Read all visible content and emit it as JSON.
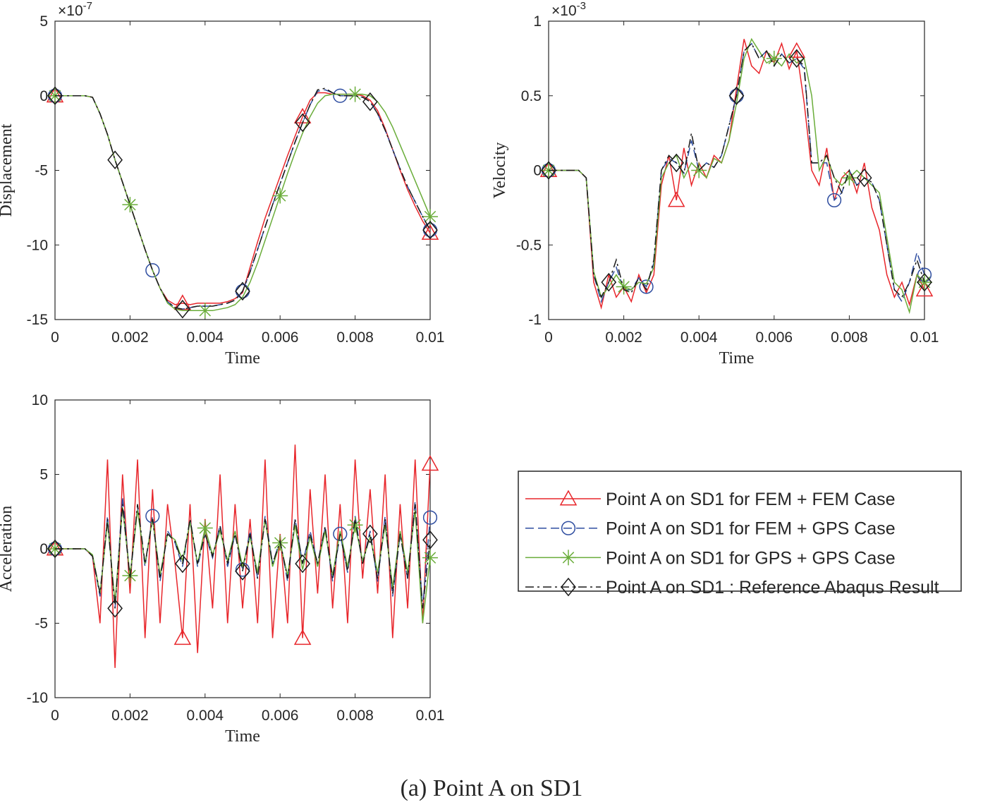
{
  "chart_data": [
    {
      "type": "line",
      "ylabel": "Displacement",
      "xlabel": "Time",
      "exponent": {
        "base": "×10",
        "power": "-7"
      },
      "xlim": [
        0,
        0.01
      ],
      "ylim": [
        -15,
        5
      ],
      "xticks": [
        0,
        0.002,
        0.004,
        0.006,
        0.008,
        0.01
      ],
      "yticks": [
        -15,
        -10,
        -5,
        0,
        5
      ],
      "x": [
        0,
        0.0002,
        0.0004,
        0.0006,
        0.0008,
        0.001,
        0.0012,
        0.0014,
        0.0016,
        0.0018,
        0.002,
        0.0022,
        0.0024,
        0.0026,
        0.0028,
        0.003,
        0.0032,
        0.0034,
        0.0036,
        0.0038,
        0.004,
        0.0042,
        0.0044,
        0.0046,
        0.0048,
        0.005,
        0.0052,
        0.0054,
        0.0056,
        0.0058,
        0.006,
        0.0062,
        0.0064,
        0.0066,
        0.0068,
        0.007,
        0.0072,
        0.0074,
        0.0076,
        0.0078,
        0.008,
        0.0082,
        0.0084,
        0.0086,
        0.0088,
        0.009,
        0.0092,
        0.0094,
        0.0096,
        0.0098,
        0.01
      ],
      "series": [
        {
          "values": [
            0,
            0,
            0,
            0,
            0,
            -0.1,
            -1.2,
            -2.6,
            -4.3,
            -5.8,
            -7.3,
            -8.8,
            -10.3,
            -11.7,
            -12.9,
            -13.7,
            -14.0,
            -13.9,
            -14.0,
            -13.9,
            -13.9,
            -13.9,
            -13.9,
            -13.8,
            -13.6,
            -13.2,
            -11.5,
            -9.8,
            -8.2,
            -6.8,
            -5.4,
            -4.0,
            -2.7,
            -1.4,
            -0.3,
            0.2,
            0.2,
            0.1,
            0.1,
            0.1,
            0.1,
            0.0,
            -0.3,
            -1.0,
            -2.2,
            -3.6,
            -5.0,
            -6.3,
            -7.4,
            -8.4,
            -9.2
          ]
        },
        {
          "values": [
            0,
            0,
            0,
            0,
            0,
            -0.1,
            -1.2,
            -2.6,
            -4.3,
            -5.8,
            -7.3,
            -8.8,
            -10.3,
            -11.7,
            -12.9,
            -13.8,
            -14.2,
            -14.3,
            -14.2,
            -14.1,
            -14.1,
            -14.1,
            -14.0,
            -13.9,
            -13.7,
            -13.1,
            -11.8,
            -10.3,
            -8.8,
            -7.3,
            -5.9,
            -4.5,
            -3.1,
            -1.8,
            -0.6,
            0.3,
            0.4,
            0.2,
            0.0,
            0.0,
            0.0,
            -0.1,
            -0.4,
            -1.2,
            -2.3,
            -3.6,
            -4.9,
            -6.1,
            -7.1,
            -8.1,
            -9.0
          ]
        },
        {
          "values": [
            0,
            0,
            0,
            0,
            0,
            -0.1,
            -1.2,
            -2.6,
            -4.3,
            -5.8,
            -7.3,
            -8.8,
            -10.3,
            -11.7,
            -12.9,
            -13.9,
            -14.3,
            -14.4,
            -14.4,
            -14.4,
            -14.4,
            -14.4,
            -14.3,
            -14.2,
            -14.0,
            -13.5,
            -12.5,
            -11.2,
            -9.7,
            -8.2,
            -6.7,
            -5.2,
            -3.8,
            -2.5,
            -1.4,
            -0.5,
            0.0,
            0.1,
            0.1,
            0.1,
            0.1,
            0.1,
            0.0,
            -0.4,
            -1.1,
            -2.1,
            -3.3,
            -4.5,
            -5.7,
            -6.9,
            -8.1
          ]
        },
        {
          "values": [
            0,
            0,
            0,
            0,
            0,
            -0.1,
            -1.2,
            -2.6,
            -4.3,
            -5.8,
            -7.3,
            -8.8,
            -10.3,
            -11.7,
            -12.9,
            -13.8,
            -14.2,
            -14.3,
            -14.2,
            -14.1,
            -14.1,
            -14.1,
            -14.0,
            -13.9,
            -13.7,
            -13.1,
            -11.8,
            -10.3,
            -8.8,
            -7.3,
            -5.9,
            -4.5,
            -3.1,
            -1.8,
            -0.6,
            0.4,
            0.5,
            0.2,
            0.0,
            0.0,
            0.0,
            -0.1,
            -0.4,
            -1.2,
            -2.3,
            -3.6,
            -4.9,
            -6.1,
            -7.1,
            -8.1,
            -9.0
          ]
        }
      ]
    },
    {
      "type": "line",
      "ylabel": "Velocity",
      "xlabel": "Time",
      "exponent": {
        "base": "×10",
        "power": "-3"
      },
      "xlim": [
        0,
        0.01
      ],
      "ylim": [
        -1,
        1
      ],
      "xticks": [
        0,
        0.002,
        0.004,
        0.006,
        0.008,
        0.01
      ],
      "yticks": [
        -1,
        -0.5,
        0,
        0.5,
        1
      ],
      "x": [
        0,
        0.0002,
        0.0004,
        0.0006,
        0.0008,
        0.001,
        0.0012,
        0.0014,
        0.0016,
        0.0018,
        0.002,
        0.0022,
        0.0024,
        0.0026,
        0.0028,
        0.003,
        0.0032,
        0.0034,
        0.0036,
        0.0038,
        0.004,
        0.0042,
        0.0044,
        0.0046,
        0.0048,
        0.005,
        0.0052,
        0.0054,
        0.0056,
        0.0058,
        0.006,
        0.0062,
        0.0064,
        0.0066,
        0.0068,
        0.007,
        0.0072,
        0.0074,
        0.0076,
        0.0078,
        0.008,
        0.0082,
        0.0084,
        0.0086,
        0.0088,
        0.009,
        0.0092,
        0.0094,
        0.0096,
        0.0098,
        0.01
      ],
      "series": [
        {
          "values": [
            0,
            0,
            0,
            0,
            0,
            -0.05,
            -0.75,
            -0.92,
            -0.7,
            -0.85,
            -0.78,
            -0.88,
            -0.7,
            -0.82,
            -0.7,
            -0.1,
            0.1,
            -0.2,
            0.15,
            -0.1,
            0.05,
            -0.05,
            0.1,
            0.05,
            0.2,
            0.55,
            0.88,
            0.7,
            0.65,
            0.8,
            0.72,
            0.85,
            0.68,
            0.8,
            0.45,
            0.0,
            -0.1,
            0.15,
            -0.2,
            -0.05,
            0.0,
            -0.15,
            0.05,
            -0.25,
            -0.4,
            -0.7,
            -0.85,
            -0.75,
            -0.9,
            -0.7,
            -0.8
          ]
        },
        {
          "values": [
            0,
            0,
            0,
            0,
            0,
            -0.05,
            -0.7,
            -0.88,
            -0.75,
            -0.65,
            -0.8,
            -0.8,
            -0.72,
            -0.78,
            -0.62,
            0.0,
            0.08,
            0.05,
            -0.02,
            0.2,
            0.0,
            0.05,
            0.02,
            0.1,
            0.3,
            0.5,
            0.8,
            0.85,
            0.75,
            0.8,
            0.7,
            0.78,
            0.72,
            0.75,
            0.68,
            0.05,
            0.05,
            0.05,
            -0.2,
            -0.15,
            0.0,
            -0.1,
            -0.05,
            -0.08,
            -0.2,
            -0.5,
            -0.8,
            -0.88,
            -0.75,
            -0.55,
            -0.7
          ]
        },
        {
          "values": [
            0,
            0,
            0,
            0,
            0,
            -0.05,
            -0.68,
            -0.85,
            -0.78,
            -0.7,
            -0.78,
            -0.8,
            -0.75,
            -0.76,
            -0.65,
            -0.05,
            0.05,
            0.1,
            -0.05,
            0.05,
            0.0,
            -0.05,
            0.08,
            0.05,
            0.2,
            0.45,
            0.75,
            0.88,
            0.8,
            0.72,
            0.75,
            0.7,
            0.78,
            0.72,
            0.75,
            0.5,
            0.0,
            0.1,
            -0.05,
            -0.1,
            -0.05,
            0.0,
            -0.05,
            -0.1,
            -0.15,
            -0.45,
            -0.75,
            -0.8,
            -0.95,
            -0.7,
            -0.75
          ]
        },
        {
          "values": [
            0,
            0,
            0,
            0,
            0,
            -0.05,
            -0.7,
            -0.85,
            -0.75,
            -0.6,
            -0.8,
            -0.82,
            -0.72,
            -0.8,
            -0.6,
            0.0,
            0.1,
            0.05,
            -0.02,
            0.25,
            0.0,
            0.05,
            0.02,
            0.1,
            0.3,
            0.5,
            0.8,
            0.85,
            0.75,
            0.8,
            0.7,
            0.78,
            0.72,
            0.75,
            0.7,
            0.05,
            0.05,
            0.1,
            -0.05,
            -0.15,
            0.0,
            -0.1,
            -0.05,
            -0.08,
            -0.2,
            -0.5,
            -0.8,
            -0.85,
            -0.75,
            -0.6,
            -0.75
          ]
        }
      ]
    },
    {
      "type": "line",
      "ylabel": "Acceleration",
      "xlabel": "Time",
      "xlim": [
        0,
        0.01
      ],
      "ylim": [
        -10,
        10
      ],
      "xticks": [
        0,
        0.002,
        0.004,
        0.006,
        0.008,
        0.01
      ],
      "yticks": [
        -10,
        -5,
        0,
        5,
        10
      ],
      "x": [
        0,
        0.0002,
        0.0004,
        0.0006,
        0.0008,
        0.001,
        0.0012,
        0.0014,
        0.0016,
        0.0018,
        0.002,
        0.0022,
        0.0024,
        0.0026,
        0.0028,
        0.003,
        0.0032,
        0.0034,
        0.0036,
        0.0038,
        0.004,
        0.0042,
        0.0044,
        0.0046,
        0.0048,
        0.005,
        0.0052,
        0.0054,
        0.0056,
        0.0058,
        0.006,
        0.0062,
        0.0064,
        0.0066,
        0.0068,
        0.007,
        0.0072,
        0.0074,
        0.0076,
        0.0078,
        0.008,
        0.0082,
        0.0084,
        0.0086,
        0.0088,
        0.009,
        0.0092,
        0.0094,
        0.0096,
        0.0098,
        0.01
      ],
      "series": [
        {
          "values": [
            0,
            0,
            0,
            0,
            0,
            -0.5,
            -5,
            6,
            -8,
            5,
            -3,
            6,
            -6,
            4,
            -5,
            3,
            -1,
            -6,
            3,
            -7,
            2,
            -4,
            5,
            -5,
            3,
            -4,
            2,
            -5,
            6,
            -6,
            1,
            -5,
            7,
            -6,
            4,
            -3,
            5,
            -4,
            3,
            -5,
            6,
            -2,
            4,
            -3,
            5,
            -6,
            3,
            -4,
            6,
            -5,
            5.7
          ]
        },
        {
          "values": [
            0,
            0,
            0,
            0,
            0,
            -0.5,
            -3.2,
            2.2,
            -4,
            3.5,
            -2,
            2.8,
            -1.2,
            2.2,
            -2.2,
            1.2,
            0.4,
            -1.2,
            2,
            -1.2,
            1,
            -0.6,
            1.6,
            -1.2,
            1,
            -1.4,
            1.2,
            -2,
            2.2,
            -1,
            0.6,
            -2.2,
            2,
            -1,
            1.2,
            -1,
            1.4,
            -2.2,
            1,
            -1.6,
            2.2,
            -1,
            1.2,
            -2.2,
            2.2,
            -3.2,
            1,
            -2,
            3.2,
            -4,
            2.1
          ]
        },
        {
          "values": [
            0,
            0,
            0,
            0,
            0,
            -0.4,
            -3,
            1.8,
            -3.6,
            2.8,
            -1.8,
            2.6,
            -1,
            2,
            -1.8,
            1,
            0.6,
            -0.8,
            1.8,
            -1,
            1.4,
            -0.4,
            1.2,
            -0.8,
            1.2,
            -1.2,
            0.8,
            -1.6,
            2,
            -1.2,
            0.4,
            -1.8,
            1.6,
            -1.4,
            0.8,
            -1.2,
            1.2,
            -1.8,
            1.2,
            -1.2,
            1.6,
            -0.8,
            0.8,
            -1.6,
            1.6,
            -2.6,
            1.2,
            -1.6,
            2.6,
            -5,
            -0.6
          ]
        },
        {
          "values": [
            0,
            0,
            0,
            0,
            0,
            -0.5,
            -3,
            2,
            -4,
            3,
            -2,
            3,
            -1,
            2,
            -2,
            1,
            0.5,
            -1,
            2,
            -1,
            1,
            -0.5,
            1.5,
            -1,
            1,
            -1.5,
            1,
            -2,
            2,
            -1,
            0.5,
            -2,
            2,
            -1,
            1,
            -1,
            1.5,
            -2,
            1,
            -1.5,
            2,
            -1,
            1,
            -2,
            2,
            -3,
            1,
            -2,
            3,
            -4,
            0.6
          ]
        }
      ]
    }
  ],
  "legend": {
    "entries": [
      {
        "name": "Point A on SD1 for FEM + FEM Case",
        "color": "#e8262b",
        "dash": "solid",
        "marker": "triangle",
        "marker_count": 4
      },
      {
        "name": "Point A on SD1 for FEM + GPS Case",
        "color": "#2e4da0",
        "dash": "dashed",
        "marker": "circle",
        "marker_count": 5
      },
      {
        "name": "Point A on SD1 for GPS + GPS Case",
        "color": "#6aad3a",
        "dash": "solid",
        "marker": "asterisk",
        "marker_count": 6
      },
      {
        "name": "Point A on SD1 : Reference Abaqus Result",
        "color": "#1a1a1a",
        "dash": "dashdot",
        "marker": "diamond",
        "marker_count": 7
      }
    ]
  },
  "caption": "(a) Point A on SD1"
}
